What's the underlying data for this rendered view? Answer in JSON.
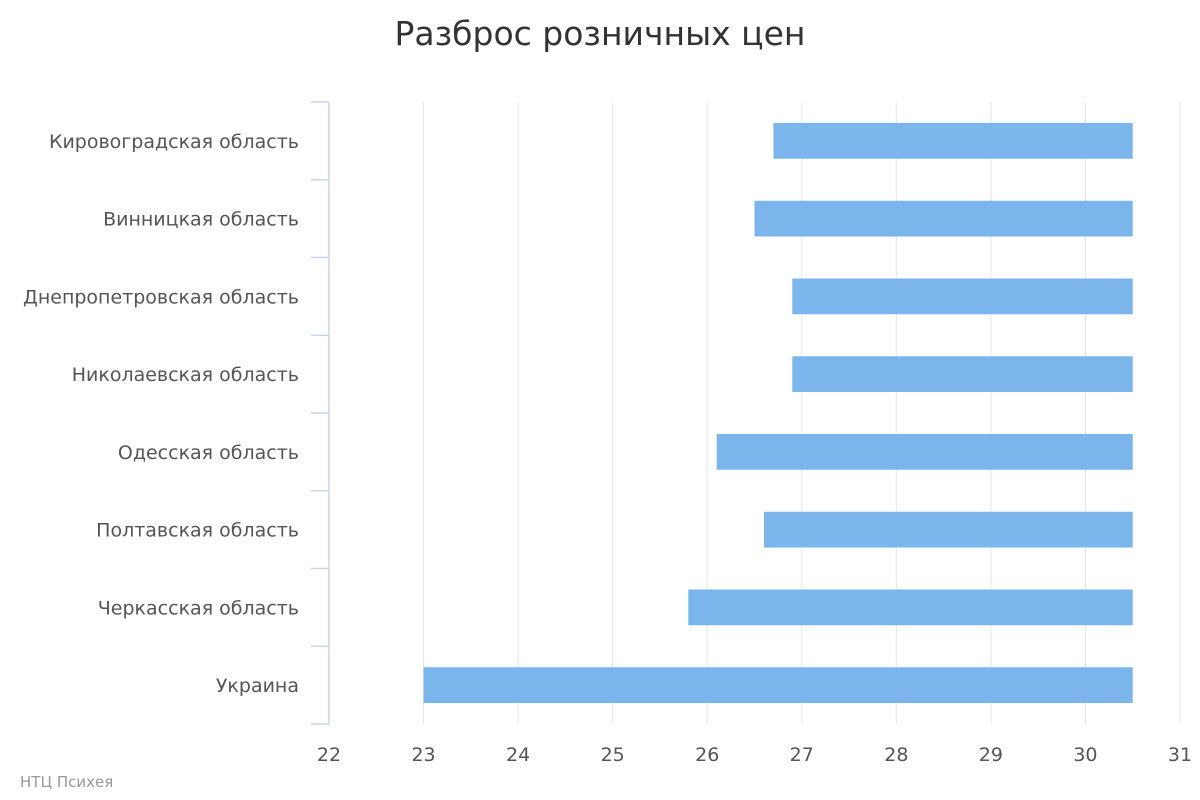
{
  "chart_data": {
    "type": "bar",
    "orientation": "horizontal",
    "title": "Разброс розничных цен",
    "credits": "НТЦ Психея",
    "categories": [
      "Кировоградская область",
      "Винницкая область",
      "Днепропетровская область",
      "Николаевская область",
      "Одесская область",
      "Полтавская область",
      "Черкасская область",
      "Украина"
    ],
    "ranges": [
      {
        "low": 26.7,
        "high": 30.5
      },
      {
        "low": 26.5,
        "high": 30.5
      },
      {
        "low": 26.9,
        "high": 30.5
      },
      {
        "low": 26.9,
        "high": 30.5
      },
      {
        "low": 26.1,
        "high": 30.5
      },
      {
        "low": 26.6,
        "high": 30.5
      },
      {
        "low": 25.8,
        "high": 30.5
      },
      {
        "low": 23.0,
        "high": 30.5
      }
    ],
    "xlim": [
      22,
      31
    ],
    "xticks": [
      22,
      23,
      24,
      25,
      26,
      27,
      28,
      29,
      30,
      31
    ],
    "grid": true,
    "legend": "none",
    "colors": {
      "bar": "#7cb5ec",
      "grid": "#e6e6e6",
      "axis": "#ccd6eb"
    }
  }
}
